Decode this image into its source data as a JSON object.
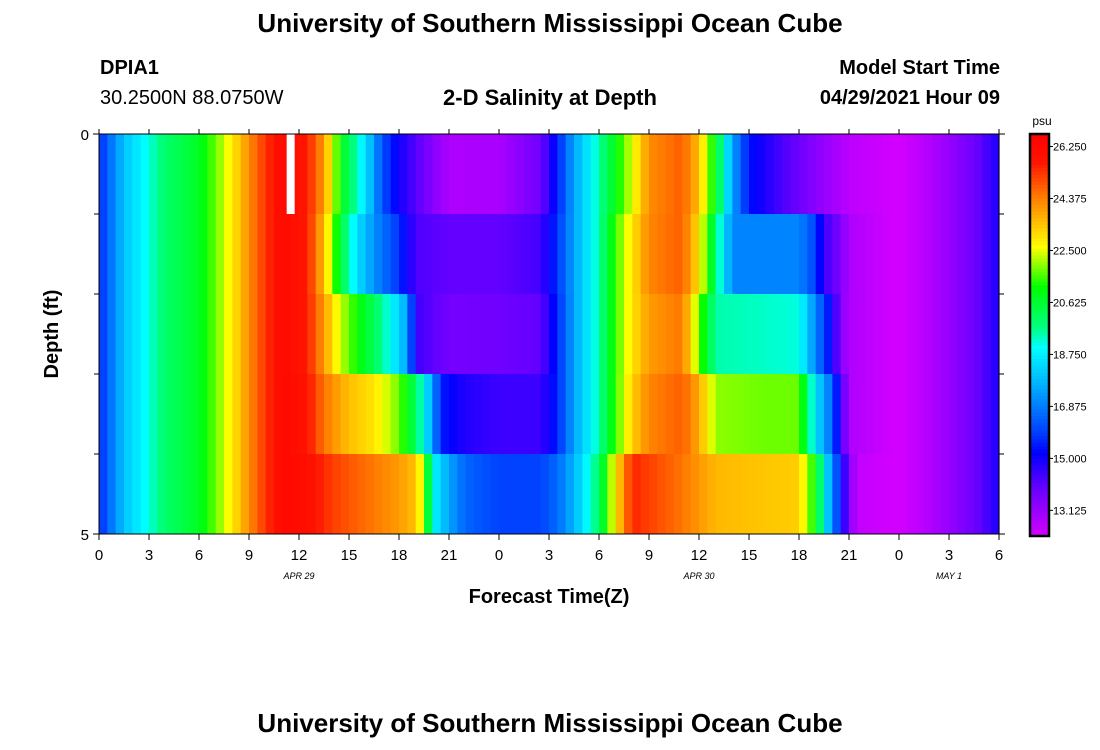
{
  "page": {
    "top_title": "University of Southern Mississippi Ocean Cube",
    "bottom_title": "University of Southern Mississippi Ocean Cube",
    "station": "DPIA1",
    "coordinates": "30.2500N  88.0750W",
    "plot_title": "2-D Salinity at Depth",
    "model_start_label": "Model Start Time",
    "model_start_value": "04/29/2021 Hour 09"
  },
  "chart_data": {
    "type": "heatmap",
    "title": "2-D Salinity at Depth",
    "xlabel": "Forecast Time(Z)",
    "ylabel": "Depth (ft)",
    "units": "psu",
    "xlim": [
      0,
      54
    ],
    "ylim": [
      0,
      5
    ],
    "x_ticks": [
      0,
      3,
      6,
      9,
      12,
      15,
      18,
      21,
      24,
      27,
      30,
      33,
      36,
      39,
      42,
      45,
      48,
      51,
      54
    ],
    "x_tick_labels": [
      "0",
      "3",
      "6",
      "9",
      "12",
      "15",
      "18",
      "21",
      "0",
      "3",
      "6",
      "9",
      "12",
      "15",
      "18",
      "21",
      "0",
      "3",
      "6"
    ],
    "y_tick_labels": [
      "0",
      "5"
    ],
    "y_minor_ticks": [
      1,
      2,
      3,
      4
    ],
    "date_labels": [
      {
        "x": 12,
        "label": "APR 29"
      },
      {
        "x": 36,
        "label": "APR 30"
      },
      {
        "x": 51,
        "label": "MAY 1"
      }
    ],
    "colorbar": {
      "min": 12.2,
      "max": 26.7,
      "tick_values": [
        26.25,
        24.375,
        22.5,
        20.625,
        18.75,
        16.875,
        15.0,
        13.125
      ],
      "tick_labels": [
        "26.250",
        "24.375",
        "22.500",
        "20.625",
        "18.750",
        "16.875",
        "15.000",
        "13.125"
      ]
    },
    "time_step_hours": 0.5,
    "surface_gap": {
      "x": 11.5,
      "depth_to": 1
    },
    "layers": [
      {
        "depth_top": 0,
        "depth_bottom": 1,
        "keyframes": [
          [
            0,
            15.6
          ],
          [
            1.5,
            18.0
          ],
          [
            4,
            20.0
          ],
          [
            6,
            20.8
          ],
          [
            7.5,
            22.3
          ],
          [
            9.5,
            24.8
          ],
          [
            11,
            26.3
          ],
          [
            12.5,
            25.6
          ],
          [
            13.5,
            24.0
          ],
          [
            14.5,
            21.0
          ],
          [
            16,
            18.5
          ],
          [
            17,
            16.2
          ],
          [
            18,
            15.0
          ],
          [
            19.5,
            13.8
          ],
          [
            21,
            12.8
          ],
          [
            24,
            12.9
          ],
          [
            26.5,
            13.8
          ],
          [
            27.5,
            15.5
          ],
          [
            28.5,
            17.5
          ],
          [
            30,
            19.5
          ],
          [
            31,
            21.0
          ],
          [
            32,
            22.5
          ],
          [
            33,
            24.2
          ],
          [
            35,
            24.8
          ],
          [
            36,
            23.5
          ],
          [
            37,
            20.8
          ],
          [
            38,
            17.5
          ],
          [
            39,
            15.4
          ],
          [
            41,
            14.3
          ],
          [
            43,
            13.4
          ],
          [
            45,
            12.6
          ],
          [
            48,
            12.2
          ],
          [
            50,
            12.8
          ],
          [
            52.5,
            13.8
          ],
          [
            54,
            14.9
          ]
        ]
      },
      {
        "depth_top": 1,
        "depth_bottom": 2,
        "keyframes": [
          [
            0,
            15.6
          ],
          [
            1.5,
            18.0
          ],
          [
            4,
            20.0
          ],
          [
            6,
            20.8
          ],
          [
            7.5,
            22.3
          ],
          [
            9.5,
            24.8
          ],
          [
            11,
            26.3
          ],
          [
            12.5,
            25.6
          ],
          [
            13.5,
            23.5
          ],
          [
            14.5,
            20.5
          ],
          [
            15.5,
            18.5
          ],
          [
            16.5,
            17.2
          ],
          [
            18,
            15.8
          ],
          [
            19,
            14.3
          ],
          [
            21,
            14.0
          ],
          [
            24,
            14.0
          ],
          [
            26.5,
            14.4
          ],
          [
            27.5,
            15.8
          ],
          [
            28.5,
            17.5
          ],
          [
            30,
            19.5
          ],
          [
            31,
            21.5
          ],
          [
            32,
            23.0
          ],
          [
            33,
            24.3
          ],
          [
            35,
            24.8
          ],
          [
            36,
            23.0
          ],
          [
            37,
            20.0
          ],
          [
            38,
            17.0
          ],
          [
            42,
            17.0
          ],
          [
            43,
            16.0
          ],
          [
            43.5,
            14.5
          ],
          [
            44.5,
            13.6
          ],
          [
            45,
            12.8
          ],
          [
            48,
            12.2
          ],
          [
            50,
            12.8
          ],
          [
            52.5,
            13.8
          ],
          [
            54,
            14.9
          ]
        ]
      },
      {
        "depth_top": 2,
        "depth_bottom": 3,
        "keyframes": [
          [
            0,
            15.6
          ],
          [
            1.5,
            18.0
          ],
          [
            4,
            20.0
          ],
          [
            6,
            20.8
          ],
          [
            7.5,
            22.3
          ],
          [
            9.5,
            24.8
          ],
          [
            11,
            26.3
          ],
          [
            12.5,
            25.6
          ],
          [
            13.5,
            24.0
          ],
          [
            14.5,
            22.3
          ],
          [
            15.5,
            21.2
          ],
          [
            16.5,
            20.2
          ],
          [
            17.5,
            19.0
          ],
          [
            18.5,
            17.5
          ],
          [
            19,
            14.5
          ],
          [
            21,
            13.7
          ],
          [
            24,
            13.8
          ],
          [
            26.5,
            14.0
          ],
          [
            27.5,
            15.6
          ],
          [
            28.5,
            17.5
          ],
          [
            30,
            19.5
          ],
          [
            31,
            21.5
          ],
          [
            32,
            23.0
          ],
          [
            33,
            24.0
          ],
          [
            35,
            24.5
          ],
          [
            36,
            21.8
          ],
          [
            37,
            19.5
          ],
          [
            42,
            19.2
          ],
          [
            43,
            17.0
          ],
          [
            44,
            15.0
          ],
          [
            44.5,
            13.5
          ],
          [
            45,
            12.8
          ],
          [
            48,
            12.2
          ],
          [
            50,
            12.8
          ],
          [
            52.5,
            13.8
          ],
          [
            54,
            14.9
          ]
        ]
      },
      {
        "depth_top": 3,
        "depth_bottom": 4,
        "keyframes": [
          [
            0,
            15.6
          ],
          [
            1.5,
            18.0
          ],
          [
            4,
            20.0
          ],
          [
            6,
            20.8
          ],
          [
            7.5,
            22.3
          ],
          [
            9.5,
            24.8
          ],
          [
            11,
            26.3
          ],
          [
            12.5,
            25.8
          ],
          [
            13.5,
            24.5
          ],
          [
            15,
            23.5
          ],
          [
            16.5,
            23.0
          ],
          [
            18,
            21.8
          ],
          [
            19,
            20.2
          ],
          [
            20,
            17.5
          ],
          [
            20.5,
            15.5
          ],
          [
            22,
            14.8
          ],
          [
            24,
            14.5
          ],
          [
            26.5,
            14.5
          ],
          [
            27.5,
            15.6
          ],
          [
            28.5,
            17.5
          ],
          [
            30,
            19.5
          ],
          [
            31,
            21.5
          ],
          [
            32,
            23.3
          ],
          [
            33,
            24.3
          ],
          [
            35,
            24.8
          ],
          [
            36,
            23.8
          ],
          [
            37,
            22.0
          ],
          [
            40,
            21.8
          ],
          [
            42,
            21.8
          ],
          [
            43,
            18.5
          ],
          [
            44,
            16.5
          ],
          [
            44.5,
            14.5
          ],
          [
            45,
            12.8
          ],
          [
            48,
            12.2
          ],
          [
            50,
            12.8
          ],
          [
            52.5,
            13.8
          ],
          [
            54,
            14.9
          ]
        ]
      },
      {
        "depth_top": 4,
        "depth_bottom": 5,
        "keyframes": [
          [
            0,
            15.6
          ],
          [
            1.5,
            18.0
          ],
          [
            4,
            20.0
          ],
          [
            6,
            20.8
          ],
          [
            7.5,
            22.3
          ],
          [
            9.5,
            24.8
          ],
          [
            11,
            26.3
          ],
          [
            12.5,
            26.0
          ],
          [
            14,
            25.2
          ],
          [
            16,
            24.6
          ],
          [
            18,
            24.0
          ],
          [
            19,
            23.5
          ],
          [
            19.5,
            22.0
          ],
          [
            20,
            19.0
          ],
          [
            21,
            17.5
          ],
          [
            22,
            16.5
          ],
          [
            24,
            16.0
          ],
          [
            26.5,
            16.0
          ],
          [
            27.5,
            16.6
          ],
          [
            28.5,
            17.8
          ],
          [
            30,
            20.0
          ],
          [
            31,
            23.0
          ],
          [
            32,
            25.5
          ],
          [
            35,
            24.5
          ],
          [
            37,
            23.6
          ],
          [
            42,
            23.3
          ],
          [
            43,
            21.0
          ],
          [
            44,
            17.0
          ],
          [
            44.5,
            15.5
          ],
          [
            45,
            13.5
          ],
          [
            45.5,
            12.5
          ],
          [
            48,
            12.2
          ],
          [
            50,
            12.8
          ],
          [
            52.5,
            13.8
          ],
          [
            54,
            14.9
          ]
        ]
      }
    ]
  }
}
